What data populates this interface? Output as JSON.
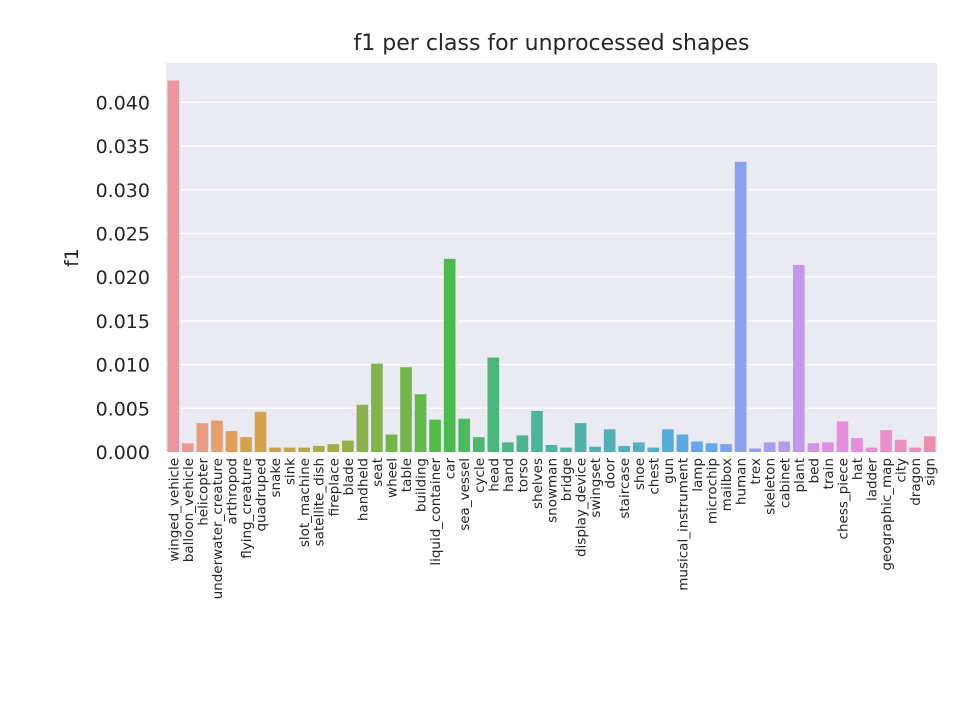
{
  "chart_data": {
    "type": "bar",
    "title": "f1 per class for unprocessed shapes",
    "ylabel": "f1",
    "xlabel": "",
    "ylim": [
      0,
      0.0445
    ],
    "yticks": [
      "0.000",
      "0.005",
      "0.010",
      "0.015",
      "0.020",
      "0.025",
      "0.030",
      "0.035",
      "0.040"
    ],
    "grid": true,
    "categories": [
      "winged_vehicle",
      "balloon_vehicle",
      "helicopter",
      "underwater_creature",
      "arthropod",
      "flying_creature",
      "quadruped",
      "snake",
      "sink",
      "slot_machine",
      "satellite_dish",
      "fireplace",
      "blade",
      "handheld",
      "seat",
      "wheel",
      "table",
      "building",
      "liquid_container",
      "car",
      "sea_vessel",
      "cycle",
      "head",
      "hand",
      "torso",
      "shelves",
      "snowman",
      "bridge",
      "display_device",
      "swingset",
      "door",
      "staircase",
      "shoe",
      "chest",
      "gun",
      "musical_instrument",
      "lamp",
      "microchip",
      "mailbox",
      "human",
      "trex",
      "skeleton",
      "cabinet",
      "plant",
      "bed",
      "train",
      "chess_piece",
      "hat",
      "ladder",
      "geographic_map",
      "city",
      "dragon",
      "sign"
    ],
    "values": [
      0.0425,
      0.001,
      0.0033,
      0.0036,
      0.0024,
      0.0017,
      0.0046,
      0.0005,
      0.0005,
      0.0005,
      0.0007,
      0.0009,
      0.0013,
      0.0054,
      0.0101,
      0.002,
      0.0097,
      0.0066,
      0.0037,
      0.0221,
      0.0038,
      0.0017,
      0.0108,
      0.0011,
      0.0019,
      0.0047,
      0.0008,
      0.0005,
      0.0033,
      0.0006,
      0.0026,
      0.0007,
      0.0011,
      0.0005,
      0.0026,
      0.002,
      0.0012,
      0.001,
      0.0009,
      0.0332,
      0.0004,
      0.0011,
      0.0012,
      0.0214,
      0.001,
      0.0011,
      0.0035,
      0.0016,
      0.0005,
      0.0025,
      0.0014,
      0.0005,
      0.0018
    ],
    "colors": [
      "#ea96a3",
      "#eb9993",
      "#e99d80",
      "#e89f70",
      "#df9f5b",
      "#d5a24e",
      "#cca249",
      "#c0a64a",
      "#b5a84a",
      "#aaab4a",
      "#a1ad4a",
      "#97af4a",
      "#8cb04b",
      "#81b24b",
      "#73b54b",
      "#63b74b",
      "#55ba4c",
      "#4cb850",
      "#4cb962",
      "#4cb871",
      "#4cb77d",
      "#4db588",
      "#4db491",
      "#4db399",
      "#4fb2a1",
      "#4fb1a8",
      "#50b1b0",
      "#51b0b7",
      "#52afbe",
      "#53aec6",
      "#55adcf",
      "#57abd9",
      "#5aa9e4",
      "#66a6ec",
      "#78a3ec",
      "#8aa1ec",
      "#999fec",
      "#a89dec",
      "#b69aeb",
      "#c497eb",
      "#d293eb",
      "#df8fe9",
      "#e78de0",
      "#e98dd4",
      "#ea8dc9",
      "#ea8ebf",
      "#ea8fb5",
      "#ea90ab"
    ]
  }
}
